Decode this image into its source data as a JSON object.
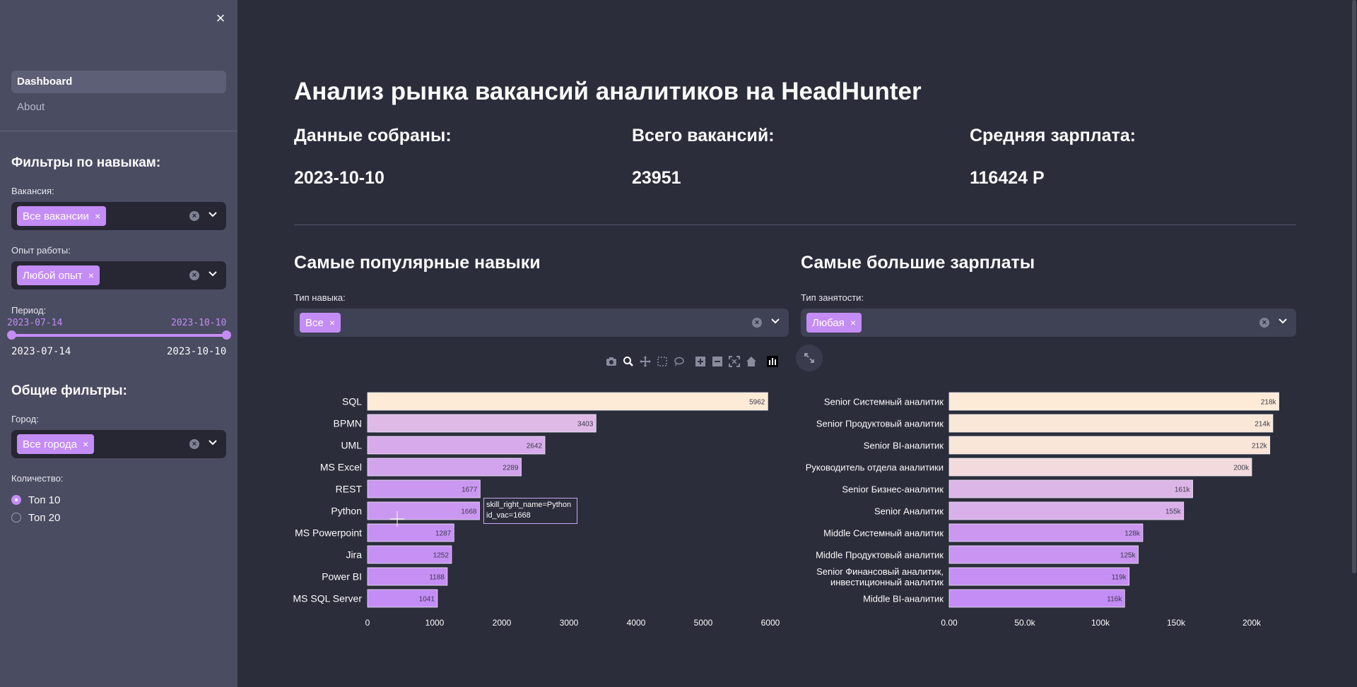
{
  "sidebar": {
    "close_glyph": "×",
    "nav": [
      "Dashboard",
      "About"
    ],
    "skill_filters_title": "Фильтры по навыкам:",
    "vacancy_label": "Вакансия:",
    "vacancy_tag": "Все вакансии",
    "experience_label": "Опыт работы:",
    "experience_tag": "Любой опыт",
    "period_label": "Период:",
    "period_start": "2023-07-14",
    "period_end": "2023-10-10",
    "period_min": "2023-07-14",
    "period_max": "2023-10-10",
    "general_filters_title": "Общие фильтры:",
    "city_label": "Город:",
    "city_tag": "Все города",
    "count_label": "Количество:",
    "count_options": [
      "Топ 10",
      "Топ 20"
    ],
    "count_selected": "Топ 10"
  },
  "main": {
    "title": "Анализ рынка вакансий аналитиков на HeadHunter",
    "metrics": [
      {
        "label": "Данные собраны:",
        "value": "2023-10-10"
      },
      {
        "label": "Всего вакансий:",
        "value": "23951"
      },
      {
        "label": "Средняя зарплата:",
        "value": "116424 Р"
      }
    ],
    "skills_section": {
      "title": "Самые популярные навыки",
      "filter_label": "Тип навыка:",
      "filter_tag": "Все"
    },
    "salary_section": {
      "title": "Самые большие зарплаты",
      "filter_label": "Тип занятости:",
      "filter_tag": "Любая"
    },
    "tooltip": {
      "line1": "skill_right_name=Python",
      "line2": "id_vac=1668"
    }
  },
  "colors": {
    "bg_main": "#2c2d3b",
    "bg_sidebar": "#4a4c62",
    "accent": "#c48cf5",
    "bar_light": "#fdebd7",
    "bar_dark": "#c48cf5"
  },
  "chart_data": [
    {
      "type": "bar",
      "orientation": "horizontal",
      "categories": [
        "SQL",
        "BPMN",
        "UML",
        "MS Excel",
        "REST",
        "Python",
        "MS Powerpoint",
        "Jira",
        "Power BI",
        "MS SQL Server"
      ],
      "values": [
        5962,
        3403,
        2642,
        2289,
        1677,
        1668,
        1287,
        1252,
        1188,
        1041
      ],
      "value_labels": [
        "5962",
        "3403",
        "2642",
        "2289",
        "1677",
        "1668",
        "1287",
        "1252",
        "1188",
        "1041"
      ],
      "xlim": [
        0,
        6000
      ],
      "xticks": [
        0,
        1000,
        2000,
        3000,
        4000,
        5000,
        6000
      ],
      "xtick_labels": [
        "0",
        "1000",
        "2000",
        "3000",
        "4000",
        "5000",
        "6000"
      ],
      "grid": false
    },
    {
      "type": "bar",
      "orientation": "horizontal",
      "categories": [
        "Senior Системный аналитик",
        "Senior Продуктовый аналитик",
        "Senior BI-аналитик",
        "Руководитель отдела аналитики",
        "Senior Бизнес-аналитик",
        "Senior Аналитик",
        "Middle Системный аналитик",
        "Middle Продуктовый аналитик",
        "Senior Финансовый аналитик,\nинвестиционный аналитик",
        "Middle BI-аналитик"
      ],
      "values": [
        218000,
        214000,
        212000,
        200000,
        161000,
        155000,
        128000,
        125000,
        119000,
        116000
      ],
      "value_labels": [
        "218k",
        "214k",
        "212k",
        "200k",
        "161k",
        "155k",
        "128k",
        "125k",
        "119k",
        "116k"
      ],
      "xlim": [
        0,
        200000
      ],
      "xticks": [
        0,
        50000,
        100000,
        150000,
        200000
      ],
      "xtick_labels": [
        "0.00",
        "50.0k",
        "100k",
        "150k",
        "200k"
      ],
      "grid": false
    }
  ]
}
